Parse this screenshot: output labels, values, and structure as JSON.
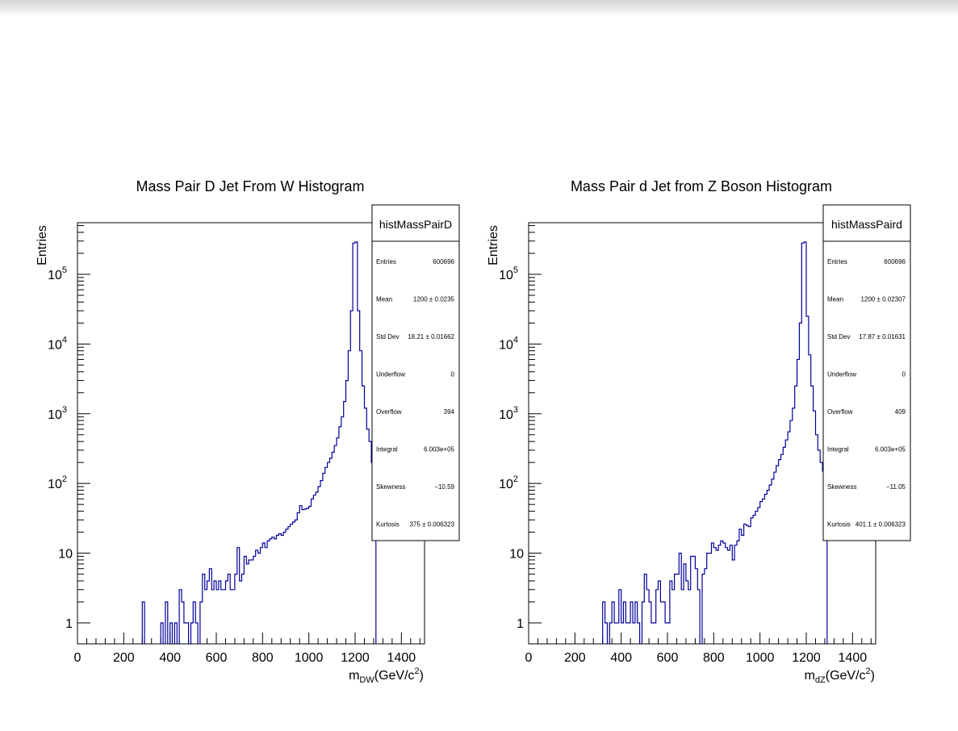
{
  "chart_data": [
    {
      "type": "histogram",
      "title": "Mass Pair D Jet From W Histogram",
      "ylabel": "Entries",
      "xlabel": {
        "prefix": "m",
        "sub": "DW",
        "unit": "(GeV/c",
        "sup": "2",
        "close": ")"
      },
      "yscale": "log",
      "xlim": [
        0,
        1500
      ],
      "ylim": [
        0.5,
        550000
      ],
      "xticks": [
        0,
        200,
        400,
        600,
        800,
        1000,
        1200,
        1400
      ],
      "xtick_labels": [
        "0",
        "200",
        "400",
        "600",
        "800",
        "1000",
        "1200",
        "1400"
      ],
      "yticks": [
        {
          "value": 1,
          "base": "1",
          "exp": ""
        },
        {
          "value": 10,
          "base": "10",
          "exp": ""
        },
        {
          "value": 100,
          "base": "10",
          "exp": "2"
        },
        {
          "value": 1000,
          "base": "10",
          "exp": "3"
        },
        {
          "value": 10000,
          "base": "10",
          "exp": "4"
        },
        {
          "value": 100000,
          "base": "10",
          "exp": "5"
        }
      ],
      "bin_width": 10,
      "bins": [
        [
          280,
          2
        ],
        [
          360,
          1
        ],
        [
          380,
          2
        ],
        [
          400,
          1
        ],
        [
          420,
          1
        ],
        [
          440,
          3
        ],
        [
          450,
          2
        ],
        [
          460,
          1
        ],
        [
          470,
          1
        ],
        [
          490,
          1
        ],
        [
          500,
          2
        ],
        [
          510,
          1
        ],
        [
          530,
          2
        ],
        [
          540,
          5
        ],
        [
          550,
          3
        ],
        [
          560,
          4
        ],
        [
          570,
          6
        ],
        [
          580,
          3
        ],
        [
          590,
          4
        ],
        [
          600,
          3
        ],
        [
          610,
          4
        ],
        [
          620,
          3
        ],
        [
          630,
          3
        ],
        [
          640,
          4
        ],
        [
          650,
          5
        ],
        [
          660,
          3
        ],
        [
          670,
          3
        ],
        [
          680,
          5
        ],
        [
          690,
          12
        ],
        [
          700,
          4
        ],
        [
          710,
          5
        ],
        [
          720,
          9
        ],
        [
          730,
          7
        ],
        [
          740,
          8
        ],
        [
          750,
          8
        ],
        [
          760,
          9
        ],
        [
          770,
          11
        ],
        [
          780,
          10
        ],
        [
          790,
          12
        ],
        [
          800,
          14
        ],
        [
          810,
          12
        ],
        [
          820,
          15
        ],
        [
          830,
          16
        ],
        [
          840,
          17
        ],
        [
          850,
          16
        ],
        [
          860,
          18
        ],
        [
          870,
          19
        ],
        [
          880,
          18
        ],
        [
          890,
          20
        ],
        [
          900,
          22
        ],
        [
          910,
          24
        ],
        [
          920,
          26
        ],
        [
          930,
          28
        ],
        [
          940,
          30
        ],
        [
          950,
          38
        ],
        [
          960,
          48
        ],
        [
          970,
          42
        ],
        [
          980,
          43
        ],
        [
          990,
          44
        ],
        [
          1000,
          47
        ],
        [
          1010,
          60
        ],
        [
          1020,
          68
        ],
        [
          1030,
          75
        ],
        [
          1040,
          90
        ],
        [
          1050,
          110
        ],
        [
          1060,
          140
        ],
        [
          1070,
          170
        ],
        [
          1080,
          200
        ],
        [
          1090,
          230
        ],
        [
          1100,
          280
        ],
        [
          1110,
          350
        ],
        [
          1120,
          450
        ],
        [
          1130,
          650
        ],
        [
          1140,
          900
        ],
        [
          1150,
          1500
        ],
        [
          1160,
          3000
        ],
        [
          1170,
          8000
        ],
        [
          1180,
          30000
        ],
        [
          1190,
          280000
        ],
        [
          1200,
          290000
        ],
        [
          1210,
          30000
        ],
        [
          1220,
          8000
        ],
        [
          1230,
          2500
        ],
        [
          1240,
          1200
        ],
        [
          1250,
          600
        ],
        [
          1260,
          400
        ],
        [
          1270,
          200
        ],
        [
          1280,
          120
        ]
      ],
      "stats": {
        "name": "histMassPairD",
        "rows": [
          {
            "label": "Entries",
            "value": "600696"
          },
          {
            "label": "Mean",
            "value": "1200 ± 0.0235"
          },
          {
            "label": "Std Dev",
            "value": "18.21 ± 0.01662"
          },
          {
            "label": "Underflow",
            "value": "0"
          },
          {
            "label": "Overflow",
            "value": "394"
          },
          {
            "label": "Integral",
            "value": "6.003e+05"
          },
          {
            "label": "Skewness",
            "value": "−10.59"
          },
          {
            "label": "Kurtosis",
            "value": "375 ± 0.006323"
          }
        ]
      }
    },
    {
      "type": "histogram",
      "title": "Mass Pair d Jet from Z Boson Histogram",
      "ylabel": "Entries",
      "xlabel": {
        "prefix": "m",
        "sub": "dZ",
        "unit": "(GeV/c",
        "sup": "2",
        "close": ")"
      },
      "yscale": "log",
      "xlim": [
        0,
        1500
      ],
      "ylim": [
        0.5,
        550000
      ],
      "xticks": [
        0,
        200,
        400,
        600,
        800,
        1000,
        1200,
        1400
      ],
      "xtick_labels": [
        "0",
        "200",
        "400",
        "600",
        "800",
        "1000",
        "1200",
        "1400"
      ],
      "yticks": [
        {
          "value": 1,
          "base": "1",
          "exp": ""
        },
        {
          "value": 10,
          "base": "10",
          "exp": ""
        },
        {
          "value": 100,
          "base": "10",
          "exp": "2"
        },
        {
          "value": 1000,
          "base": "10",
          "exp": "3"
        },
        {
          "value": 10000,
          "base": "10",
          "exp": "4"
        },
        {
          "value": 100000,
          "base": "10",
          "exp": "5"
        }
      ],
      "bin_width": 10,
      "bins": [
        [
          320,
          2
        ],
        [
          330,
          1
        ],
        [
          350,
          1
        ],
        [
          360,
          2
        ],
        [
          370,
          1
        ],
        [
          380,
          1
        ],
        [
          390,
          3
        ],
        [
          400,
          1
        ],
        [
          410,
          2
        ],
        [
          420,
          1
        ],
        [
          430,
          1
        ],
        [
          440,
          2
        ],
        [
          450,
          1
        ],
        [
          460,
          2
        ],
        [
          470,
          1
        ],
        [
          490,
          2
        ],
        [
          500,
          5
        ],
        [
          510,
          3
        ],
        [
          520,
          2
        ],
        [
          530,
          1
        ],
        [
          540,
          1
        ],
        [
          550,
          3
        ],
        [
          560,
          4
        ],
        [
          570,
          2
        ],
        [
          580,
          2
        ],
        [
          590,
          1
        ],
        [
          600,
          1
        ],
        [
          610,
          4
        ],
        [
          620,
          3
        ],
        [
          630,
          5
        ],
        [
          640,
          5
        ],
        [
          650,
          10
        ],
        [
          660,
          3
        ],
        [
          670,
          7
        ],
        [
          680,
          4
        ],
        [
          690,
          3
        ],
        [
          700,
          9
        ],
        [
          710,
          9
        ],
        [
          720,
          6
        ],
        [
          730,
          3
        ],
        [
          750,
          5
        ],
        [
          760,
          6
        ],
        [
          770,
          10
        ],
        [
          780,
          10
        ],
        [
          790,
          14
        ],
        [
          800,
          12
        ],
        [
          810,
          11
        ],
        [
          820,
          13
        ],
        [
          830,
          15
        ],
        [
          840,
          14
        ],
        [
          850,
          12
        ],
        [
          860,
          11
        ],
        [
          870,
          13
        ],
        [
          880,
          8
        ],
        [
          890,
          13
        ],
        [
          900,
          15
        ],
        [
          910,
          22
        ],
        [
          920,
          18
        ],
        [
          930,
          26
        ],
        [
          940,
          25
        ],
        [
          950,
          24
        ],
        [
          960,
          32
        ],
        [
          970,
          35
        ],
        [
          980,
          40
        ],
        [
          990,
          45
        ],
        [
          1000,
          55
        ],
        [
          1010,
          60
        ],
        [
          1020,
          70
        ],
        [
          1030,
          80
        ],
        [
          1040,
          95
        ],
        [
          1050,
          115
        ],
        [
          1060,
          145
        ],
        [
          1070,
          180
        ],
        [
          1080,
          220
        ],
        [
          1090,
          260
        ],
        [
          1100,
          330
        ],
        [
          1110,
          420
        ],
        [
          1120,
          550
        ],
        [
          1130,
          800
        ],
        [
          1140,
          1200
        ],
        [
          1150,
          2500
        ],
        [
          1160,
          6000
        ],
        [
          1170,
          20000
        ],
        [
          1180,
          280000
        ],
        [
          1190,
          290000
        ],
        [
          1200,
          25000
        ],
        [
          1210,
          7000
        ],
        [
          1220,
          2500
        ],
        [
          1230,
          1100
        ],
        [
          1240,
          500
        ],
        [
          1250,
          300
        ],
        [
          1260,
          200
        ],
        [
          1270,
          150
        ],
        [
          1280,
          100
        ]
      ],
      "stats": {
        "name": "histMassPaird",
        "rows": [
          {
            "label": "Entries",
            "value": "600696"
          },
          {
            "label": "Mean",
            "value": "1200 ± 0.02307"
          },
          {
            "label": "Std Dev",
            "value": "17.87 ± 0.01631"
          },
          {
            "label": "Underflow",
            "value": "0"
          },
          {
            "label": "Overflow",
            "value": "409"
          },
          {
            "label": "Integral",
            "value": "6.003e+05"
          },
          {
            "label": "Skewness",
            "value": "−11.05"
          },
          {
            "label": "Kurtosis",
            "value": "401.1 ± 0.006323"
          }
        ]
      }
    }
  ]
}
